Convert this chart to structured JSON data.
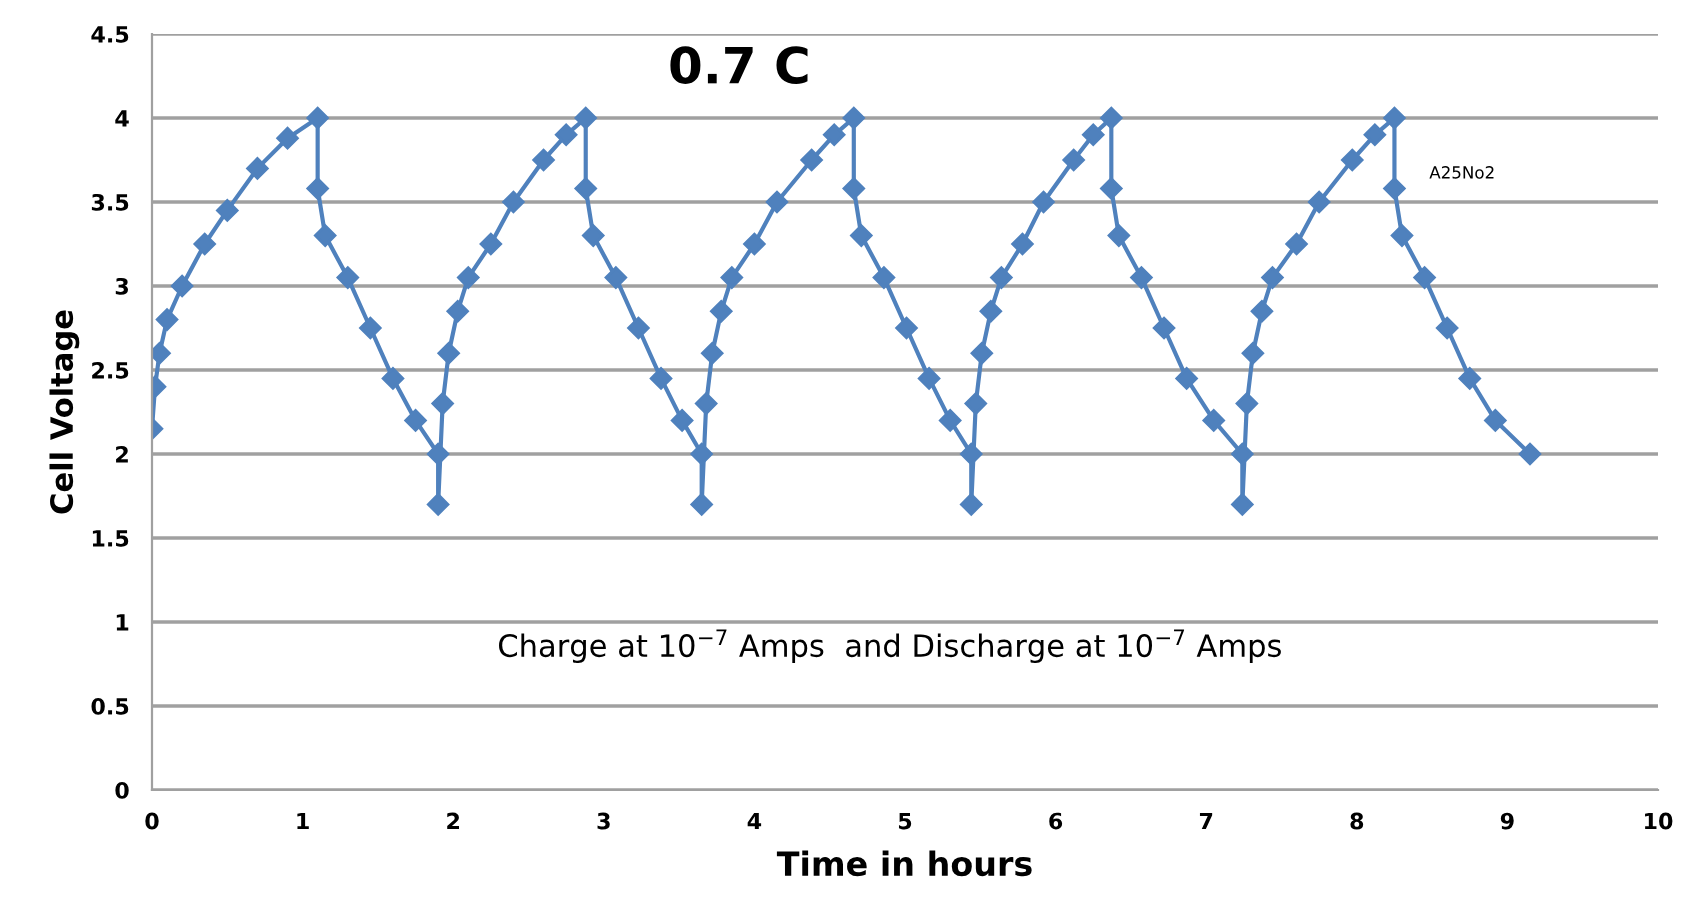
{
  "chart_data": {
    "type": "line",
    "title": "0.7 C",
    "xlabel": "Time in hours",
    "ylabel": "Cell Voltage",
    "annotations": [
      "Charge at 10$^{−7}$ Amps  and Discharge at 10$^{−7}$ Amps",
      "A25No2"
    ],
    "xlim": [
      0,
      10
    ],
    "xticks": [
      0,
      1,
      2,
      3,
      4,
      5,
      6,
      7,
      8,
      9,
      10
    ],
    "ylim": [
      0,
      4.5
    ],
    "yticks": [
      0,
      0.5,
      1,
      1.5,
      2,
      2.5,
      3,
      3.5,
      4,
      4.5
    ],
    "grid": "y",
    "marker": "diamond",
    "line_style": "solid",
    "series": [
      {
        "color": "#4f81bd",
        "x": [
          0,
          0.02,
          0.05,
          0.1,
          0.2,
          0.35,
          0.5,
          0.7,
          0.9,
          1.1,
          1.1,
          1.15,
          1.3,
          1.45,
          1.6,
          1.75,
          1.9,
          1.9,
          1.93,
          1.97,
          2.03,
          2.1,
          2.25,
          2.4,
          2.6,
          2.75,
          2.88,
          2.88,
          2.93,
          3.08,
          3.23,
          3.38,
          3.52,
          3.65,
          3.65,
          3.68,
          3.72,
          3.78,
          3.85,
          4.0,
          4.15,
          4.38,
          4.53,
          4.66,
          4.66,
          4.71,
          4.86,
          5.01,
          5.16,
          5.3,
          5.44,
          5.44,
          5.47,
          5.51,
          5.57,
          5.64,
          5.78,
          5.92,
          6.12,
          6.25,
          6.37,
          6.37,
          6.42,
          6.57,
          6.72,
          6.87,
          7.05,
          7.24,
          7.24,
          7.27,
          7.31,
          7.37,
          7.44,
          7.6,
          7.75,
          7.97,
          8.12,
          8.25,
          8.25,
          8.3,
          8.45,
          8.6,
          8.75,
          8.92,
          9.15
        ],
        "values": [
          2.15,
          2.4,
          2.6,
          2.8,
          3.0,
          3.25,
          3.45,
          3.7,
          3.88,
          4.0,
          3.58,
          3.3,
          3.05,
          2.75,
          2.45,
          2.2,
          2.0,
          1.7,
          2.3,
          2.6,
          2.85,
          3.05,
          3.25,
          3.5,
          3.75,
          3.9,
          4.0,
          3.58,
          3.3,
          3.05,
          2.75,
          2.45,
          2.2,
          2.0,
          1.7,
          2.3,
          2.6,
          2.85,
          3.05,
          3.25,
          3.5,
          3.75,
          3.9,
          4.0,
          3.58,
          3.3,
          3.05,
          2.75,
          2.45,
          2.2,
          2.0,
          1.7,
          2.3,
          2.6,
          2.85,
          3.05,
          3.25,
          3.5,
          3.75,
          3.9,
          4.0,
          3.58,
          3.3,
          3.05,
          2.75,
          2.45,
          2.2,
          2.0,
          1.7,
          2.3,
          2.6,
          2.85,
          3.05,
          3.25,
          3.5,
          3.75,
          3.9,
          4.0,
          3.58,
          3.3,
          3.05,
          2.75,
          2.45,
          2.2,
          2.0
        ]
      }
    ]
  }
}
